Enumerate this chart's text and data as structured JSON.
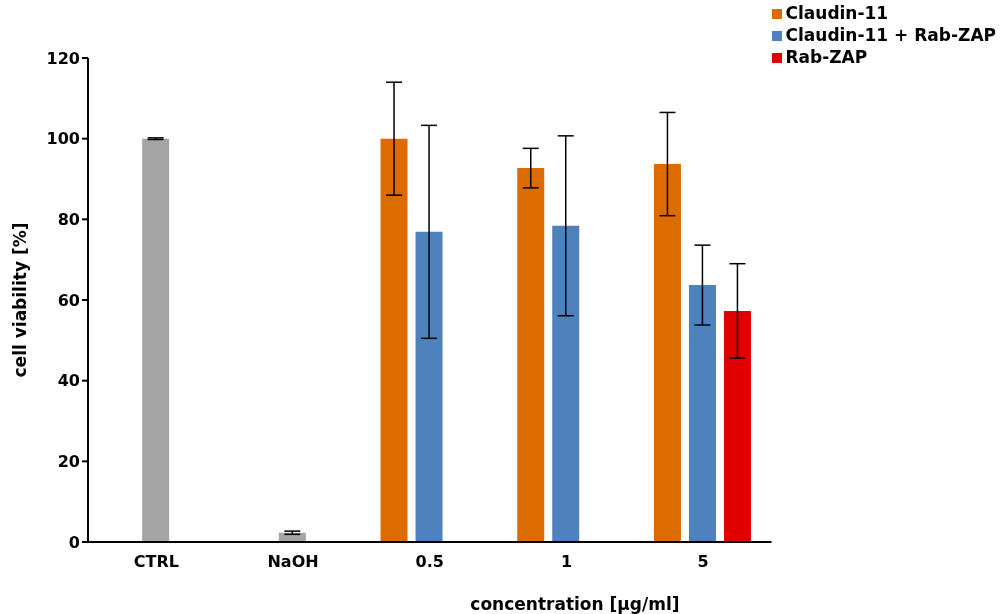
{
  "chart_data": {
    "type": "bar",
    "xlabel": "concentration [µg/ml]",
    "ylabel": "cell viability [%]",
    "categories": [
      "CTRL",
      "NaOH",
      "0.5",
      "1",
      "5"
    ],
    "series": [
      {
        "color": "#a5a5a5",
        "values": [
          100,
          2.3,
          null,
          null,
          null
        ],
        "errors": [
          0.2,
          0.4,
          null,
          null,
          null
        ]
      },
      {
        "name": "Claudin-11",
        "color": "#dd6c00",
        "values": [
          null,
          null,
          100,
          92.7,
          93.7
        ],
        "errors": [
          null,
          null,
          14,
          4.9,
          12.8
        ]
      },
      {
        "name": "Claudin-11 + Rab-ZAP",
        "color": "#4f81bd",
        "values": [
          null,
          null,
          76.9,
          78.4,
          63.7
        ],
        "errors": [
          null,
          null,
          26.4,
          22.3,
          9.9
        ]
      },
      {
        "name": "Rab-ZAP",
        "color": "#e00000",
        "values": [
          null,
          null,
          null,
          null,
          57.3
        ],
        "errors": [
          null,
          null,
          null,
          null,
          11.7
        ]
      }
    ],
    "ylim": [
      0,
      120
    ],
    "yticks": [
      0,
      20,
      40,
      60,
      80,
      100,
      120
    ],
    "grid": false,
    "legend": "top right"
  }
}
